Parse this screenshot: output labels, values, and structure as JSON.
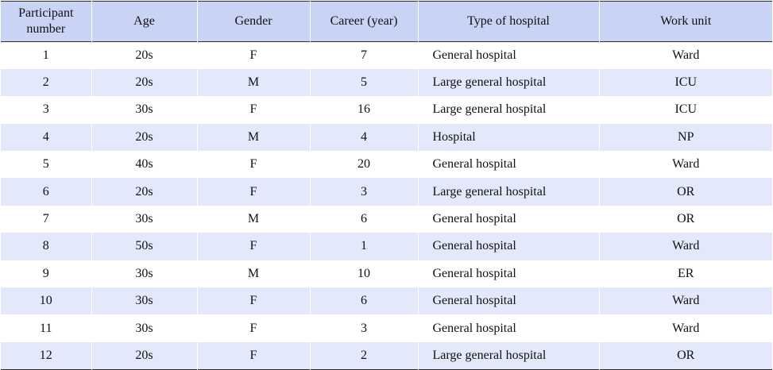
{
  "table": {
    "headers": {
      "participant": "Participant number",
      "age": "Age",
      "gender": "Gender",
      "career": "Career (year)",
      "hospital_type": "Type of hospital",
      "work_unit": "Work unit"
    },
    "rows": [
      {
        "participant": "1",
        "age": "20s",
        "gender": "F",
        "career": "7",
        "hospital_type": "General hospital",
        "work_unit": "Ward"
      },
      {
        "participant": "2",
        "age": "20s",
        "gender": "M",
        "career": "5",
        "hospital_type": "Large general hospital",
        "work_unit": "ICU"
      },
      {
        "participant": "3",
        "age": "30s",
        "gender": "F",
        "career": "16",
        "hospital_type": "Large general hospital",
        "work_unit": "ICU"
      },
      {
        "participant": "4",
        "age": "20s",
        "gender": "M",
        "career": "4",
        "hospital_type": "Hospital",
        "work_unit": "NP"
      },
      {
        "participant": "5",
        "age": "40s",
        "gender": "F",
        "career": "20",
        "hospital_type": "General hospital",
        "work_unit": "Ward"
      },
      {
        "participant": "6",
        "age": "20s",
        "gender": "F",
        "career": "3",
        "hospital_type": "Large general hospital",
        "work_unit": "OR"
      },
      {
        "participant": "7",
        "age": "30s",
        "gender": "M",
        "career": "6",
        "hospital_type": "General hospital",
        "work_unit": "OR"
      },
      {
        "participant": "8",
        "age": "50s",
        "gender": "F",
        "career": "1",
        "hospital_type": "General hospital",
        "work_unit": "Ward"
      },
      {
        "participant": "9",
        "age": "30s",
        "gender": "M",
        "career": "10",
        "hospital_type": "General hospital",
        "work_unit": "ER"
      },
      {
        "participant": "10",
        "age": "30s",
        "gender": "F",
        "career": "6",
        "hospital_type": "General hospital",
        "work_unit": "Ward"
      },
      {
        "participant": "11",
        "age": "30s",
        "gender": "F",
        "career": "3",
        "hospital_type": "General hospital",
        "work_unit": "Ward"
      },
      {
        "participant": "12",
        "age": "20s",
        "gender": "F",
        "career": "2",
        "hospital_type": "Large general hospital",
        "work_unit": "OR"
      }
    ]
  },
  "colors": {
    "header_background": "#c8d3f5",
    "stripe_background": "#e3e8fa",
    "rule_color": "#2b2b2b"
  }
}
